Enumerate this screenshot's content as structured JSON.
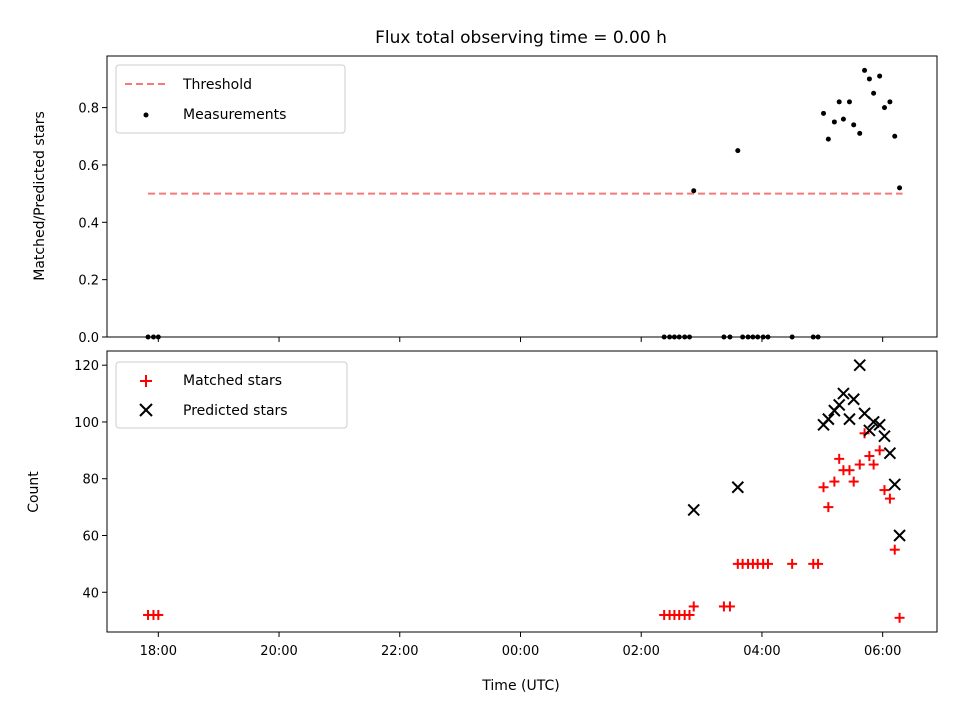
{
  "chart_data": [
    {
      "type": "scatter",
      "title": "Flux total observing time = 0.00 h",
      "xlabel": "",
      "ylabel": "Matched/Predicted stars",
      "xlim_hours": [
        17.15,
        30.9
      ],
      "ylim": [
        0,
        0.98
      ],
      "yticks": [
        0.0,
        0.2,
        0.4,
        0.6,
        0.8
      ],
      "ytick_labels": [
        "0.0",
        "0.2",
        "0.4",
        "0.6",
        "0.8"
      ],
      "legend": {
        "position": "top-left",
        "entries": [
          "Threshold",
          "Measurements"
        ]
      },
      "colors": {
        "threshold": "#f47a7a",
        "measurements": "#000000"
      },
      "threshold": {
        "name": "Threshold",
        "value": 0.5,
        "x_range_hours": [
          17.83,
          30.33
        ]
      },
      "series": [
        {
          "name": "Measurements",
          "x_hours": [
            17.83,
            17.92,
            18.0,
            26.38,
            26.47,
            26.55,
            26.63,
            26.72,
            26.8,
            26.87,
            27.37,
            27.47,
            27.6,
            27.68,
            27.77,
            27.85,
            27.93,
            28.02,
            28.1,
            28.5,
            28.85,
            28.93,
            29.02,
            29.1,
            29.2,
            29.28,
            29.35,
            29.45,
            29.52,
            29.62,
            29.7,
            29.78,
            29.85,
            29.95,
            30.03,
            30.12,
            30.2,
            30.28
          ],
          "values": [
            0,
            0,
            0,
            0,
            0,
            0,
            0,
            0,
            0,
            0.51,
            0,
            0,
            0.65,
            0,
            0,
            0,
            0,
            0,
            0,
            0,
            0,
            0,
            0.78,
            0.69,
            0.75,
            0.82,
            0.76,
            0.82,
            0.74,
            0.71,
            0.93,
            0.9,
            0.85,
            0.91,
            0.8,
            0.82,
            0.7,
            0.52
          ]
        }
      ]
    },
    {
      "type": "scatter",
      "title": "",
      "xlabel": "Time (UTC)",
      "ylabel": "Count",
      "xlim_hours": [
        17.15,
        30.9
      ],
      "ylim": [
        26,
        125
      ],
      "yticks": [
        40,
        60,
        80,
        100,
        120
      ],
      "ytick_labels": [
        "40",
        "60",
        "80",
        "100",
        "120"
      ],
      "xticks_hours": [
        18,
        20,
        22,
        24,
        26,
        28,
        30
      ],
      "xtick_labels": [
        "18:00",
        "20:00",
        "22:00",
        "00:00",
        "02:00",
        "04:00",
        "06:00"
      ],
      "legend": {
        "position": "top-left",
        "entries": [
          "Matched stars",
          "Predicted stars"
        ]
      },
      "colors": {
        "matched": "#ff0000",
        "predicted": "#000000"
      },
      "series": [
        {
          "name": "Matched stars",
          "x_hours": [
            17.83,
            17.92,
            18.0,
            26.38,
            26.47,
            26.55,
            26.63,
            26.72,
            26.8,
            26.87,
            27.37,
            27.47,
            27.6,
            27.68,
            27.77,
            27.85,
            27.93,
            28.02,
            28.1,
            28.5,
            28.85,
            28.93,
            29.02,
            29.1,
            29.2,
            29.28,
            29.35,
            29.45,
            29.52,
            29.62,
            29.7,
            29.78,
            29.85,
            29.95,
            30.03,
            30.12,
            30.2,
            30.28
          ],
          "values": [
            32,
            32,
            32,
            32,
            32,
            32,
            32,
            32,
            32,
            35,
            35,
            35,
            50,
            50,
            50,
            50,
            50,
            50,
            50,
            50,
            50,
            50,
            77,
            70,
            79,
            87,
            83,
            83,
            79,
            85,
            96,
            88,
            85,
            90,
            76,
            73,
            55,
            31
          ]
        },
        {
          "name": "Predicted stars",
          "x_hours": [
            26.87,
            27.6,
            29.02,
            29.1,
            29.2,
            29.28,
            29.35,
            29.45,
            29.52,
            29.62,
            29.7,
            29.78,
            29.85,
            29.95,
            30.03,
            30.12,
            30.2,
            30.28
          ],
          "values": [
            69,
            77,
            99,
            101,
            104,
            106,
            110,
            101,
            108,
            120,
            103,
            97,
            100,
            99,
            95,
            89,
            78,
            60
          ]
        }
      ]
    }
  ]
}
